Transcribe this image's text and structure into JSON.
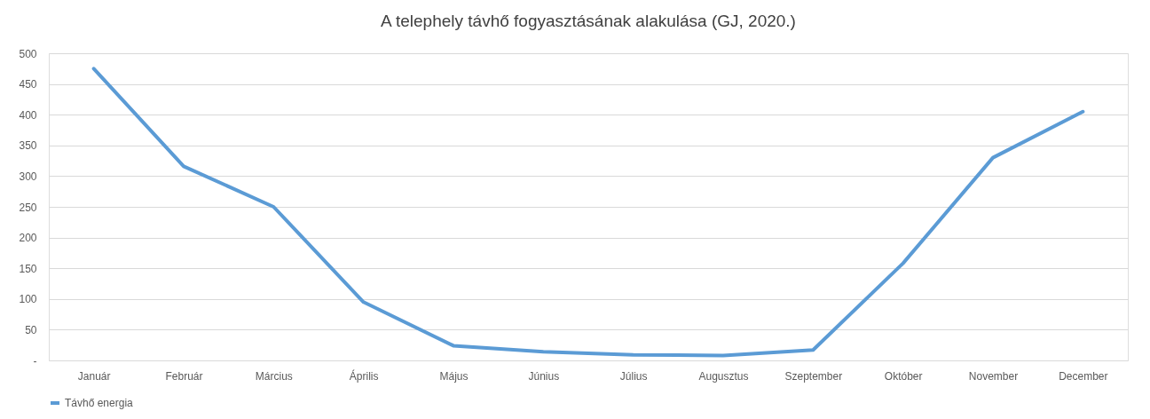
{
  "chart_data": {
    "type": "line",
    "title": "A telephely távhő fogyasztásának alakulása (GJ, 2020.)",
    "categories": [
      "Január",
      "Február",
      "Március",
      "Április",
      "Május",
      "Június",
      "Július",
      "Augusztus",
      "Szeptember",
      "Október",
      "November",
      "December"
    ],
    "series": [
      {
        "name": "Távhő energia",
        "color": "#5b9bd5",
        "values": [
          475,
          316,
          250,
          95,
          24,
          14,
          9,
          8,
          17,
          158,
          330,
          405
        ]
      }
    ],
    "ylim": [
      0,
      500
    ],
    "yticks": [
      {
        "value": 0,
        "label": "-"
      },
      50,
      100,
      150,
      200,
      250,
      300,
      350,
      400,
      450,
      500
    ],
    "grid": "y",
    "legend": "bottom",
    "marker": "none",
    "line_style": "solid"
  }
}
